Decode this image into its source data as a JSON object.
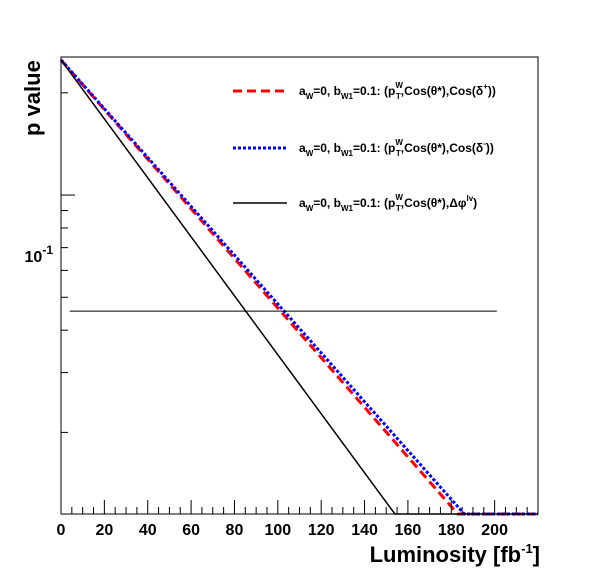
{
  "chart_data": {
    "type": "line",
    "xlabel": "Luminosity [fb",
    "xlabel_sup": "-1",
    "xlabel_end": "]",
    "ylabel": "p value",
    "yscale": "log",
    "xlim": [
      0,
      220
    ],
    "ylim": [
      0.0115,
      0.255
    ],
    "x_ticks": [
      0,
      20,
      40,
      60,
      80,
      100,
      120,
      140,
      160,
      180,
      200
    ],
    "y_tick_label": {
      "value": 0.1,
      "base": "10",
      "exp": "-1"
    },
    "threshold": {
      "value": 0.0455,
      "x_range": [
        4,
        201
      ]
    },
    "legend_placement": "top-right",
    "series": [
      {
        "color": "#ff0000",
        "dash": "dashed",
        "legend": {
          "a": "a",
          "a_sub": "W",
          "eq": "=0, ",
          "b": "b",
          "b_sub": "W1",
          "mid": "=0.1: (p",
          "p_sup": "W",
          "p_sub": "T",
          "after_p": ",Cos(θ*),Cos(δ",
          "d_sup": "+",
          "end": "))"
        },
        "points": [
          [
            0,
            0.25
          ],
          [
            183,
            0.0115
          ],
          [
            220,
            0.0115
          ]
        ]
      },
      {
        "color": "#0000ff",
        "dash": "dotted",
        "legend": {
          "a": "a",
          "a_sub": "W",
          "eq": "=0, ",
          "b": "b",
          "b_sub": "W1",
          "mid": "=0.1: (p",
          "p_sup": "W",
          "p_sub": "T",
          "after_p": ",Cos(θ*),Cos(δ",
          "d_sup": "-",
          "end": "))"
        },
        "points": [
          [
            0,
            0.25
          ],
          [
            186,
            0.0115
          ],
          [
            220,
            0.0115
          ]
        ]
      },
      {
        "color": "#000000",
        "dash": "solid",
        "legend": {
          "a": "a",
          "a_sub": "W",
          "eq": "=0, ",
          "b": "b",
          "b_sub": "W1",
          "mid": "=0.1: (p",
          "p_sup": "W",
          "p_sub": "T",
          "after_p": ",Cos(θ*),Δφ",
          "d_sup": "lv",
          "end": ")"
        },
        "points": [
          [
            0,
            0.25
          ],
          [
            154,
            0.0115
          ],
          [
            220,
            0.0115
          ]
        ]
      }
    ]
  }
}
